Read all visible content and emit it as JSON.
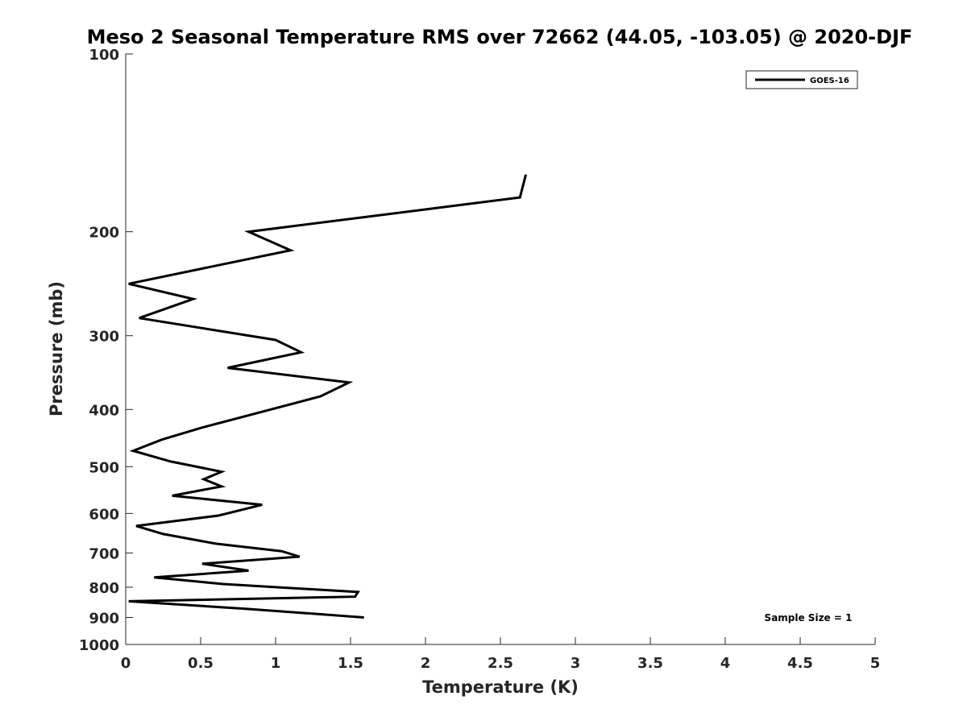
{
  "chart_data": {
    "type": "line",
    "title": "Meso 2 Seasonal Temperature RMS over 72662 (44.05, -103.05) @ 2020-DJF",
    "xlabel": "Temperature (K)",
    "ylabel": "Pressure (mb)",
    "xlim": [
      0,
      5
    ],
    "ylim": [
      100,
      1000
    ],
    "y_scale": "log",
    "y_reversed": true,
    "x_ticks": [
      "0",
      "0.5",
      "1",
      "1.5",
      "2",
      "2.5",
      "3",
      "3.5",
      "4",
      "4.5",
      "5"
    ],
    "y_ticks": [
      "100",
      "200",
      "300",
      "400",
      "500",
      "600",
      "700",
      "800",
      "900",
      "1000"
    ],
    "grid": false,
    "legend_position": "top-right",
    "annotation": "Sample Size = 1",
    "series": [
      {
        "name": "GOES-16",
        "color": "#000000",
        "points": [
          [
            2.67,
            160
          ],
          [
            2.63,
            175
          ],
          [
            0.82,
            200
          ],
          [
            1.1,
            215
          ],
          [
            0.02,
            245
          ],
          [
            0.45,
            260
          ],
          [
            0.09,
            280
          ],
          [
            1.0,
            305
          ],
          [
            1.17,
            320
          ],
          [
            0.68,
            340
          ],
          [
            1.49,
            360
          ],
          [
            1.3,
            380
          ],
          [
            0.5,
            430
          ],
          [
            0.24,
            450
          ],
          [
            0.05,
            470
          ],
          [
            0.3,
            490
          ],
          [
            0.64,
            510
          ],
          [
            0.52,
            525
          ],
          [
            0.64,
            540
          ],
          [
            0.31,
            560
          ],
          [
            0.91,
            580
          ],
          [
            0.62,
            605
          ],
          [
            0.07,
            630
          ],
          [
            0.25,
            650
          ],
          [
            0.6,
            675
          ],
          [
            1.04,
            695
          ],
          [
            1.16,
            710
          ],
          [
            0.51,
            730
          ],
          [
            0.82,
            750
          ],
          [
            0.19,
            770
          ],
          [
            0.65,
            790
          ],
          [
            1.55,
            815
          ],
          [
            1.53,
            830
          ],
          [
            0.02,
            845
          ],
          [
            0.8,
            870
          ],
          [
            1.59,
            900
          ]
        ]
      }
    ]
  }
}
